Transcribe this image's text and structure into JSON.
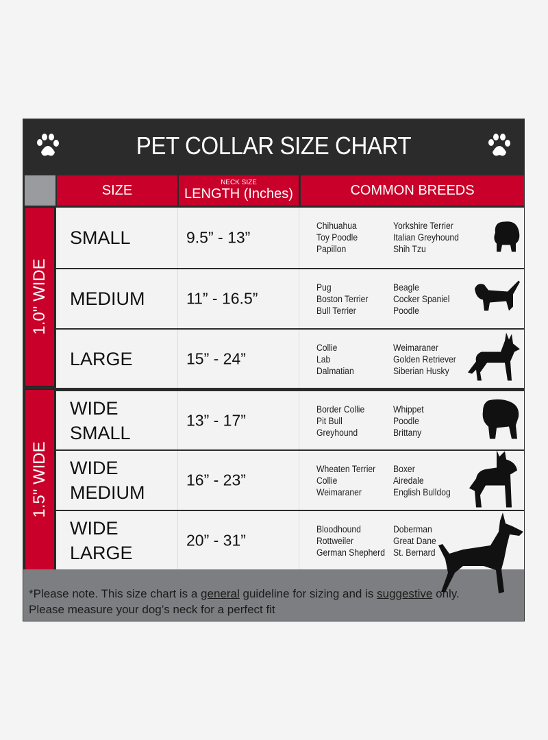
{
  "title": "PET COLLAR SIZE CHART",
  "header": {
    "size": "SIZE",
    "neck_size": "NECK SIZE",
    "length": "LENGTH (Inches)",
    "breeds": "COMMON BREEDS"
  },
  "groups": [
    {
      "label": "1.0\" WIDE"
    },
    {
      "label": "1.5\" WIDE"
    }
  ],
  "rows": [
    {
      "size": "SMALL",
      "length": "9.5” - 13”",
      "breeds_a": [
        "Chihuahua",
        "Toy Poodle",
        "Papillon"
      ],
      "breeds_b": [
        "Yorkshire Terrier",
        "Italian Greyhound",
        "Shih Tzu"
      ],
      "icon": "small-dog-icon"
    },
    {
      "size": "MEDIUM",
      "length": "11” - 16.5”",
      "breeds_a": [
        "Pug",
        "Boston Terrier",
        "Bull Terrier"
      ],
      "breeds_b": [
        "Beagle",
        "Cocker Spaniel",
        "Poodle"
      ],
      "icon": "dachshund-icon"
    },
    {
      "size": "LARGE",
      "length": "15” - 24”",
      "breeds_a": [
        "Collie",
        "Lab",
        "Dalmatian"
      ],
      "breeds_b": [
        "Weimaraner",
        "Golden Retriever",
        "Siberian Husky"
      ],
      "icon": "shepherd-dog-icon"
    },
    {
      "size": "WIDE SMALL",
      "length": "13” - 17”",
      "breeds_a": [
        "Border Collie",
        "Pit Bull",
        "Greyhound"
      ],
      "breeds_b": [
        "Whippet",
        "Poodle",
        "Brittany"
      ],
      "icon": "bulldog-icon"
    },
    {
      "size": "WIDE MEDIUM",
      "length": "16” - 23”",
      "breeds_a": [
        "Wheaten Terrier",
        "Collie",
        "Weimaraner"
      ],
      "breeds_b": [
        "Boxer",
        "Airedale",
        "English Bulldog"
      ],
      "icon": "pitbull-icon"
    },
    {
      "size": "WIDE LARGE",
      "length": "20” - 31”",
      "breeds_a": [
        "Bloodhound",
        "Rottweiler",
        "German Shepherd"
      ],
      "breeds_b": [
        "Doberman",
        "Great Dane",
        "St. Bernard"
      ],
      "icon": "doberman-icon"
    }
  ],
  "footer": {
    "p1": "*Please note. This size chart is a ",
    "u1": "general",
    "p2": " guideline for sizing and is ",
    "u2": "suggestive",
    "p3": " only.",
    "line2": "Please measure your dog’s neck for a perfect fit"
  },
  "colors": {
    "header_bg": "#2b2b2b",
    "accent": "#c8002a",
    "footer_bg": "#7d7e81"
  }
}
